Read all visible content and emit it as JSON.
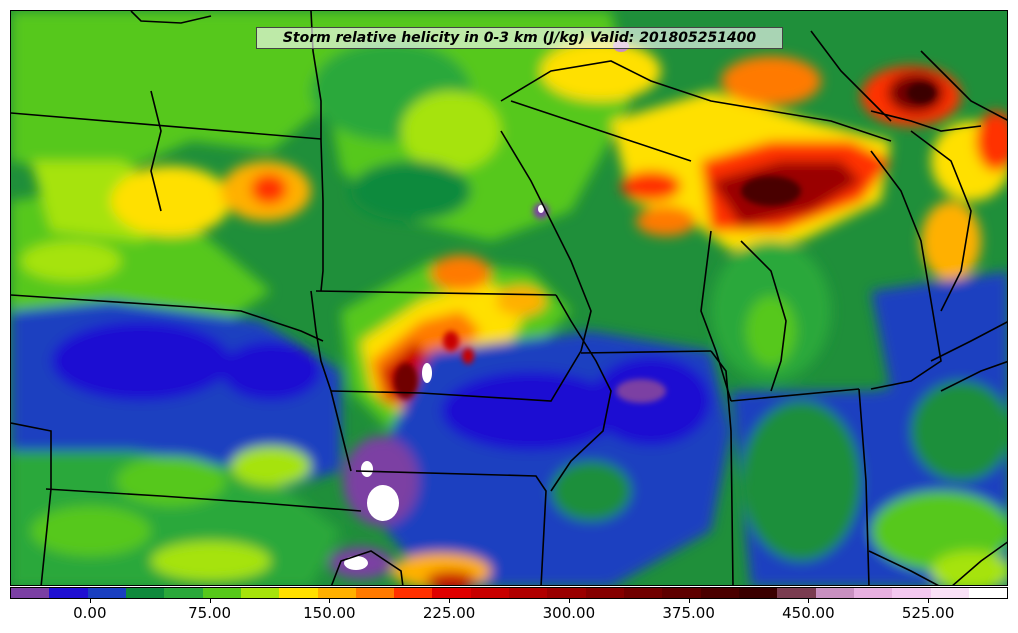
{
  "map": {
    "title": "Storm relative helicity in 0-3 km (J/kg) Valid: 201805251400",
    "colorbar": {
      "colors": [
        "#7b3fa3",
        "#1f0fd2",
        "#1a3fc0",
        "#0f8a3c",
        "#2aa83a",
        "#56c81a",
        "#a6e30c",
        "#ffe000",
        "#ffb000",
        "#ff7a00",
        "#ff3000",
        "#e00000",
        "#c80000",
        "#b00000",
        "#9a0000",
        "#850000",
        "#700000",
        "#5e0000",
        "#4a0000",
        "#3a0000",
        "#7a3c50",
        "#c890c0",
        "#e7b0e0",
        "#f3c8f0",
        "#f9e0f6",
        "#ffffff"
      ],
      "tick_labels": [
        "0.00",
        "75.00",
        "150.00",
        "225.00",
        "300.00",
        "375.00",
        "450.00",
        "525.00"
      ],
      "tick_values": [
        0,
        75,
        150,
        225,
        300,
        375,
        450,
        525
      ],
      "min": -50,
      "max": 575
    }
  }
}
